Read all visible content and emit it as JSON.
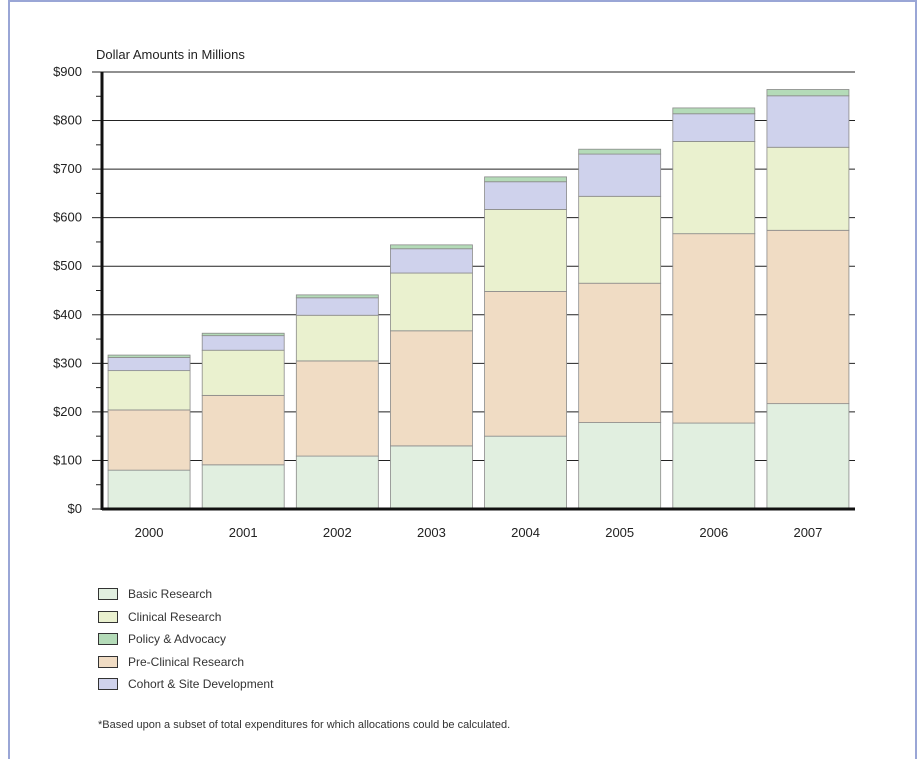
{
  "chart_data": {
    "type": "bar",
    "stacked": true,
    "ylabel": "Dollar Amounts in Millions",
    "ylim": [
      0,
      900
    ],
    "yticks": [
      "$0",
      "$100",
      "$200",
      "$300",
      "$400",
      "$500",
      "$600",
      "$700",
      "$800",
      "$900"
    ],
    "categories": [
      "2000",
      "2001",
      "2002",
      "2003",
      "2004",
      "2005",
      "2006",
      "2007"
    ],
    "series": [
      {
        "name": "Basic Research",
        "color": "#e1efe0",
        "values": [
          80,
          91,
          109,
          130,
          150,
          178,
          177,
          217
        ]
      },
      {
        "name": "Pre-Clinical Research",
        "color": "#f0dcc4",
        "values": [
          124,
          143,
          196,
          237,
          298,
          287,
          390,
          357
        ]
      },
      {
        "name": "Clinical Research",
        "color": "#eaf1cf",
        "values": [
          81,
          93,
          94,
          119,
          169,
          179,
          190,
          171
        ]
      },
      {
        "name": "Cohort & Site Development",
        "color": "#cfd2ec",
        "values": [
          27,
          30,
          36,
          50,
          57,
          87,
          57,
          106
        ]
      },
      {
        "name": "Policy & Advocacy",
        "color": "#b4dbb8",
        "values": [
          5,
          5,
          6,
          8,
          10,
          10,
          12,
          13
        ]
      }
    ],
    "grid": true,
    "legend_position": "bottom-left"
  },
  "legend": [
    {
      "label": "Basic Research",
      "color": "#e1efe0"
    },
    {
      "label": "Clinical Research",
      "color": "#eaf1cf"
    },
    {
      "label": "Policy & Advocacy",
      "color": "#b4dbb8"
    },
    {
      "label": "Pre-Clinical Research",
      "color": "#f0dcc4"
    },
    {
      "label": "Cohort & Site Development",
      "color": "#cfd2ec"
    }
  ],
  "footnote": "*Based upon a subset of total expenditures for which allocations could be calculated."
}
